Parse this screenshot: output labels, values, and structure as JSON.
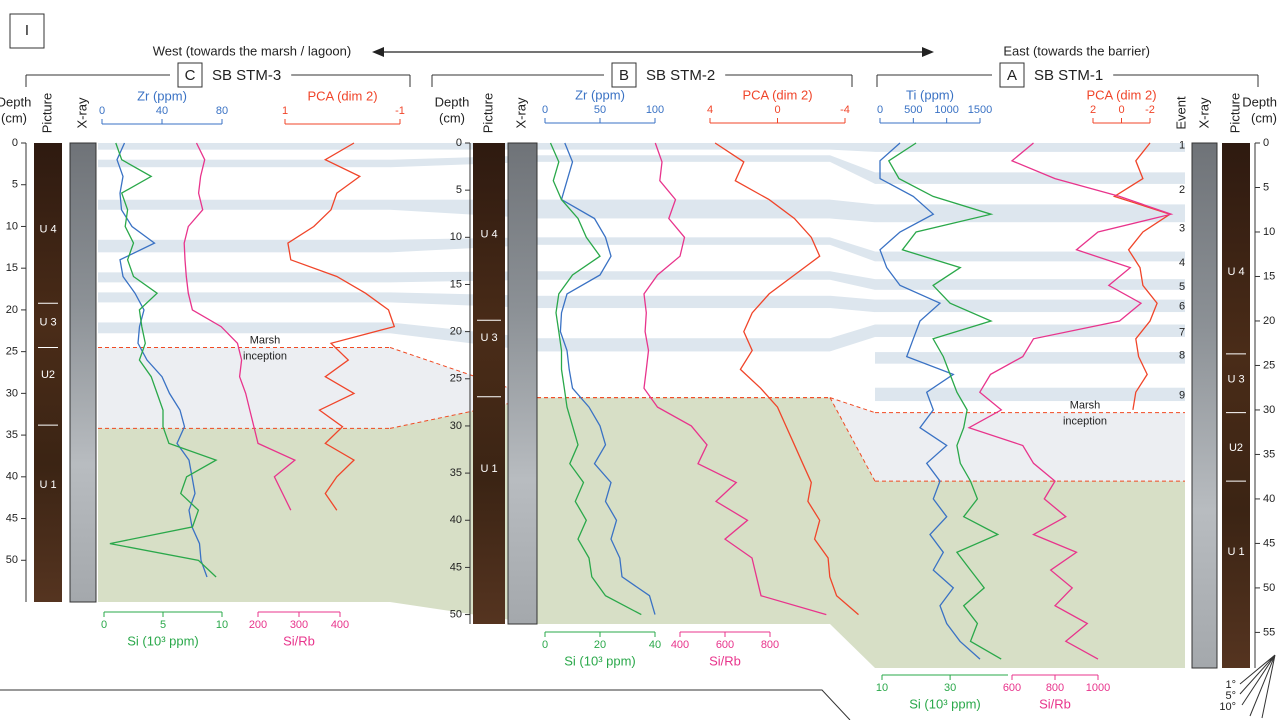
{
  "header": {
    "figure_label": "I",
    "west": "West (towards the marsh / lagoon)",
    "east": "East (towards the barrier)"
  },
  "angle_legend": [
    "1°",
    "5°",
    "10°"
  ],
  "chart_data": [
    {
      "type": "depth-profile",
      "label": "C",
      "title": "SB STM-3",
      "depth_label": [
        "Depth",
        "(cm)"
      ],
      "columns": [
        "Picture",
        "X-ray"
      ],
      "ylim": [
        0,
        55
      ],
      "yticks": [
        0,
        5,
        10,
        15,
        20,
        25,
        30,
        35,
        40,
        45,
        50
      ],
      "depth": [
        0,
        2,
        4,
        6,
        8,
        10,
        12,
        14,
        16,
        18,
        20,
        22,
        24,
        26,
        28,
        30,
        32,
        34,
        36,
        38,
        40,
        42,
        44,
        46,
        48,
        50,
        52
      ],
      "axes": [
        {
          "title": "Zr (ppm)",
          "color": "#3a72c4",
          "position": "top",
          "xlim": [
            0,
            80
          ],
          "xticks": [
            0,
            40,
            80
          ],
          "values": [
            15,
            10,
            14,
            12,
            13,
            20,
            35,
            12,
            14,
            22,
            28,
            25,
            24,
            30,
            40,
            45,
            52,
            55,
            50,
            58,
            60,
            62,
            58,
            60,
            65,
            66,
            70
          ]
        },
        {
          "title": "PCA (dim 2)",
          "color": "#f0452a",
          "position": "top",
          "xlim": [
            1,
            -1
          ],
          "xticks": [
            1,
            -1
          ],
          "values": [
            -0.2,
            0.3,
            -0.3,
            0.1,
            0.2,
            0.5,
            0.95,
            0.9,
            0.1,
            -0.4,
            -0.8,
            -0.9,
            0.2,
            -0.1,
            0.3,
            -0.2,
            0.4,
            0,
            0.3,
            -0.2,
            0.1,
            0.3,
            0.1,
            null,
            null,
            null,
            null
          ]
        },
        {
          "title": "Si (10³ ppm)",
          "color": "#2aa84a",
          "position": "bottom",
          "xlim": [
            0,
            10
          ],
          "xticks": [
            0,
            5,
            10
          ],
          "values": [
            1,
            1.5,
            4,
            1.5,
            2,
            1.8,
            2.5,
            2,
            2.5,
            4.5,
            3,
            3.2,
            3.5,
            3,
            4,
            4.5,
            5,
            5,
            5.5,
            9.5,
            7,
            6.5,
            8,
            7.5,
            0.5,
            8,
            9.5
          ]
        },
        {
          "title": "Si/Rb",
          "color": "#e8348c",
          "position": "bottom",
          "xlim": [
            200,
            400
          ],
          "xticks": [
            200,
            300,
            400
          ],
          "values": [
            50,
            70,
            60,
            55,
            65,
            30,
            20,
            22,
            25,
            30,
            40,
            110,
            150,
            160,
            155,
            170,
            180,
            190,
            200,
            290,
            240,
            260,
            280,
            null,
            260,
            null,
            270
          ]
        }
      ],
      "bands": [
        [
          0,
          0.8
        ],
        [
          2,
          2.9
        ],
        [
          6.8,
          8
        ],
        [
          11.6,
          13.1
        ],
        [
          15.5,
          16.7
        ],
        [
          17.9,
          19.1
        ],
        [
          21.5,
          22.8
        ]
      ],
      "marsh_inception": 24.5,
      "inception_label": [
        "Marsh",
        "inception"
      ],
      "u1_top": 34.2,
      "units": [
        {
          "label": "U 4",
          "depth": 10.4
        },
        {
          "label": "U 3",
          "depth": 21.5
        },
        {
          "label": "U2",
          "depth": 27.8
        },
        {
          "label": "U 1",
          "depth": 41
        }
      ],
      "unit_boundaries": [
        19.2,
        24.5,
        33.8
      ]
    },
    {
      "type": "depth-profile",
      "label": "B",
      "title": "SB STM-2",
      "depth_label": [
        "Depth",
        "(cm)"
      ],
      "columns": [
        "Picture",
        "X-ray"
      ],
      "ylim": [
        0,
        51
      ],
      "yticks": [
        0,
        5,
        10,
        15,
        20,
        25,
        30,
        35,
        40,
        45,
        50
      ],
      "depth": [
        0,
        2,
        4,
        6,
        8,
        10,
        12,
        14,
        16,
        18,
        20,
        22,
        24,
        26,
        28,
        30,
        32,
        34,
        36,
        38,
        40,
        42,
        44,
        46,
        48,
        50
      ],
      "axes": [
        {
          "title": "Zr (ppm)",
          "color": "#3a72c4",
          "position": "top",
          "xlim": [
            0,
            100
          ],
          "xticks": [
            0,
            50,
            100
          ],
          "values": [
            18,
            25,
            20,
            15,
            45,
            55,
            60,
            50,
            20,
            15,
            14,
            20,
            22,
            25,
            40,
            50,
            55,
            45,
            60,
            55,
            65,
            60,
            68,
            70,
            95,
            100
          ]
        },
        {
          "title": "PCA (dim 2)",
          "color": "#f0452a",
          "position": "top",
          "xlim": [
            4,
            -4
          ],
          "xticks": [
            4,
            0,
            -4
          ],
          "values": [
            3.7,
            2,
            2.5,
            0.5,
            -1,
            -2,
            -2.5,
            -1,
            0.5,
            1.5,
            2,
            1.5,
            2.2,
            1,
            0,
            -0.5,
            -1,
            -1.5,
            -2,
            -1.8,
            -2.5,
            -2.2,
            -3,
            -3.1,
            -3.5,
            -4.8
          ]
        },
        {
          "title": "Si (10³ ppm)",
          "color": "#2aa84a",
          "position": "bottom",
          "xlim": [
            0,
            40
          ],
          "xticks": [
            0,
            20,
            40
          ],
          "values": [
            2,
            5,
            3,
            6,
            12,
            15,
            20,
            10,
            5,
            4,
            5,
            6,
            6,
            7,
            8,
            10,
            12,
            9,
            14,
            11,
            15,
            12,
            16,
            17,
            22,
            35
          ]
        },
        {
          "title": "Si/Rb",
          "color": "#e8348c",
          "position": "bottom",
          "xlim": [
            400,
            800
          ],
          "xticks": [
            400,
            600,
            800
          ],
          "values": [
            290,
            320,
            310,
            380,
            350,
            420,
            400,
            300,
            240,
            250,
            245,
            260,
            250,
            240,
            300,
            450,
            520,
            480,
            650,
            560,
            700,
            600,
            720,
            740,
            760,
            1050
          ]
        }
      ],
      "bands": [
        [
          0,
          0.7
        ],
        [
          1.3,
          2
        ],
        [
          6,
          8
        ],
        [
          10,
          10.8
        ],
        [
          13.6,
          14.5
        ],
        [
          16.2,
          17.5
        ],
        [
          20.7,
          22.1
        ]
      ],
      "marsh_inception": 27,
      "u1_top": 27,
      "units": [
        {
          "label": "U 4",
          "depth": 9.7
        },
        {
          "label": "U 3",
          "depth": 20.7
        },
        {
          "label": "U 1",
          "depth": 34.6
        }
      ],
      "unit_boundaries": [
        18.8,
        26.9
      ]
    },
    {
      "type": "depth-profile",
      "label": "A",
      "title": "SB STM-1",
      "depth_label": [
        "Depth",
        "(cm)"
      ],
      "columns": [
        "Event",
        "X-ray",
        "Picture"
      ],
      "ylim": [
        0,
        59
      ],
      "yticks": [
        0,
        5,
        10,
        15,
        20,
        25,
        30,
        35,
        40,
        45,
        50,
        55
      ],
      "depth": [
        0,
        2,
        4,
        6,
        8,
        10,
        12,
        14,
        16,
        18,
        20,
        22,
        24,
        26,
        28,
        30,
        32,
        34,
        36,
        38,
        40,
        42,
        44,
        46,
        48,
        50,
        52,
        54,
        56,
        58
      ],
      "axes": [
        {
          "title": "Ti (ppm)",
          "color": "#3a72c4",
          "position": "top",
          "xlim": [
            0,
            1500
          ],
          "xticks": [
            0,
            500,
            1000,
            1500
          ],
          "values": [
            300,
            0,
            0,
            500,
            800,
            300,
            0,
            100,
            300,
            900,
            600,
            500,
            400,
            1100,
            700,
            800,
            600,
            1000,
            700,
            900,
            800,
            1000,
            750,
            950,
            800,
            1100,
            900,
            1000,
            1200,
            1500
          ]
        },
        {
          "title": "PCA (dim 2)",
          "color": "#f0452a",
          "position": "top",
          "xlim": [
            2,
            -2
          ],
          "xticks": [
            2,
            0,
            -2
          ],
          "values": [
            -2,
            -1,
            -1.5,
            0.5,
            -3.4,
            -1.5,
            -0.5,
            -1.3,
            -1.5,
            -2.5,
            -2,
            -1,
            -1.2,
            -1.8,
            -1,
            -0.8,
            null,
            null,
            null,
            null,
            null,
            null,
            null,
            null,
            null,
            null,
            null,
            null,
            null,
            null
          ]
        },
        {
          "title": "Si (10³ ppm)",
          "color": "#2aa84a",
          "position": "bottom",
          "xlim": [
            10,
            47
          ],
          "xticks": [
            10,
            30
          ],
          "values": [
            20,
            12,
            15,
            25,
            42,
            20,
            16,
            33,
            25,
            30,
            42,
            25,
            28,
            30,
            32,
            35,
            34,
            32,
            33,
            36,
            38,
            34,
            44,
            32,
            36,
            40,
            34,
            38,
            36,
            45
          ]
        },
        {
          "title": "Si/Rb",
          "color": "#e8348c",
          "position": "bottom",
          "xlim": [
            600,
            1000
          ],
          "xticks": [
            600,
            800,
            1000
          ],
          "values": [
            700,
            600,
            800,
            1100,
            1340,
            1000,
            900,
            1150,
            1050,
            1200,
            1100,
            700,
            650,
            500,
            450,
            550,
            400,
            650,
            700,
            800,
            750,
            850,
            700,
            900,
            780,
            880,
            800,
            950,
            850,
            1000
          ]
        }
      ],
      "bands": [
        [
          0,
          1
        ],
        [
          3.3,
          4.6
        ],
        [
          6.9,
          8.9
        ],
        [
          12.2,
          13.3
        ],
        [
          15.3,
          16.5
        ],
        [
          17.6,
          19
        ],
        [
          20.4,
          21.8
        ],
        [
          23.5,
          24.8
        ],
        [
          27.5,
          29
        ]
      ],
      "events": [
        {
          "label": "1",
          "depth": 0.3
        },
        {
          "label": "2",
          "depth": 5.3
        },
        {
          "label": "3",
          "depth": 9.6
        },
        {
          "label": "4",
          "depth": 13.5
        },
        {
          "label": "5",
          "depth": 16.2
        },
        {
          "label": "6",
          "depth": 18.4
        },
        {
          "label": "7",
          "depth": 21.3
        },
        {
          "label": "8",
          "depth": 23.9
        },
        {
          "label": "9",
          "depth": 28.4
        }
      ],
      "marsh_inception": 30.3,
      "inception_label": [
        "Marsh",
        "inception"
      ],
      "u1_top": 38,
      "units": [
        {
          "label": "U 4",
          "depth": 14.5
        },
        {
          "label": "U 3",
          "depth": 26.6
        },
        {
          "label": "U2",
          "depth": 34.3
        },
        {
          "label": "U 1",
          "depth": 46
        }
      ],
      "unit_boundaries": [
        23.7,
        30.3,
        38
      ]
    }
  ]
}
